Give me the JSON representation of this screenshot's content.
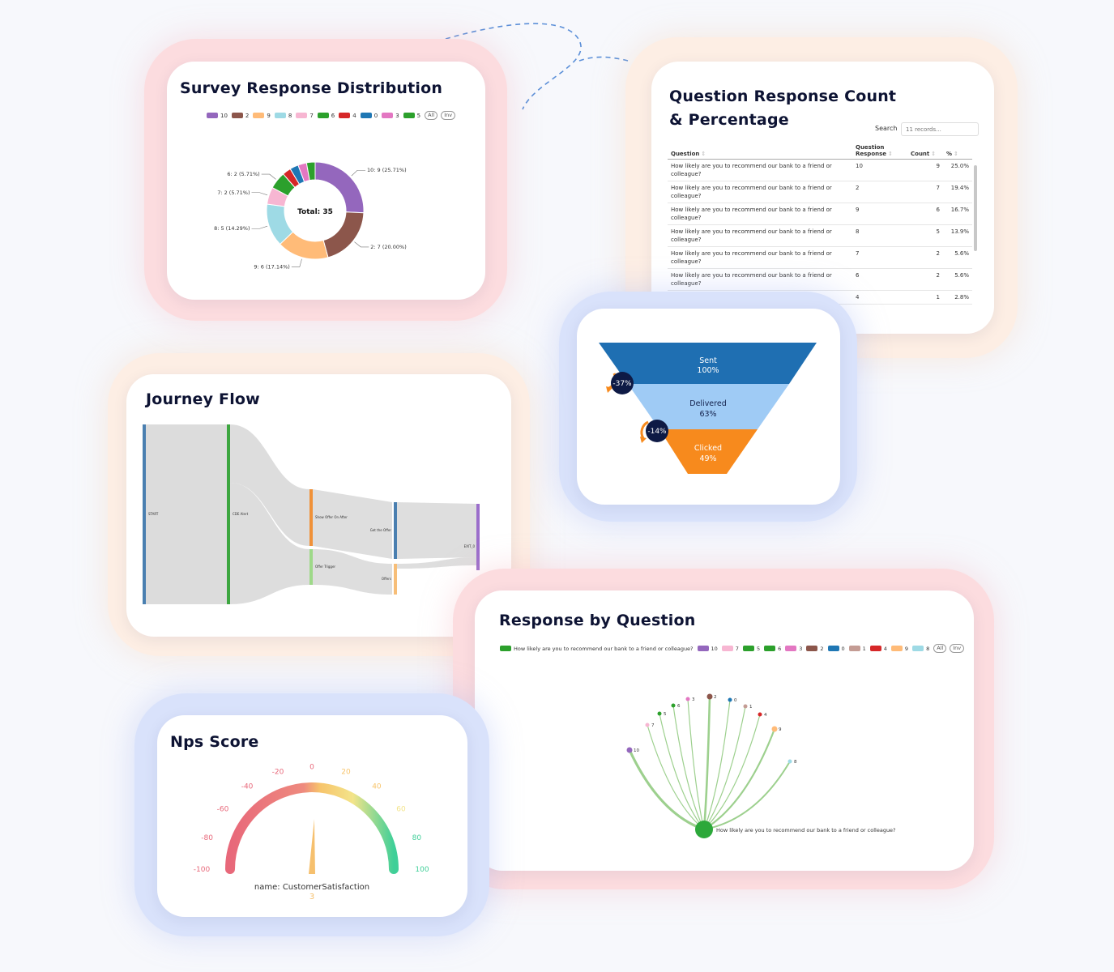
{
  "survey_distribution": {
    "title": "Survey Response Distribution",
    "legend": [
      {
        "label": "10",
        "color": "#9467bd"
      },
      {
        "label": "2",
        "color": "#8c564b"
      },
      {
        "label": "9",
        "color": "#ffbb78"
      },
      {
        "label": "8",
        "color": "#9edae5"
      },
      {
        "label": "7",
        "color": "#f7b6d2"
      },
      {
        "label": "6",
        "color": "#2ca02c"
      },
      {
        "label": "4",
        "color": "#d62728"
      },
      {
        "label": "0",
        "color": "#1f77b4"
      },
      {
        "label": "3",
        "color": "#e377c2"
      },
      {
        "label": "5",
        "color": "#2ca02c"
      }
    ],
    "btn_all": "All",
    "btn_inv": "Inv",
    "center_label": "Total: 35"
  },
  "question_table": {
    "title_line1": "Question Response Count",
    "title_line2": "& Percentage",
    "search_label": "Search",
    "search_placeholder": "11 records...",
    "headers": {
      "question": "Question",
      "response_line1": "Question",
      "response_line2": "Response",
      "count": "Count",
      "percent": "%"
    },
    "rows": [
      {
        "question_line1": "How likely are you to recommend our bank to a friend or",
        "question_line2": "colleague?",
        "response": "10",
        "count": "9",
        "percent": "25.0%"
      },
      {
        "question_line1": "How likely are you to recommend our bank to a friend or",
        "question_line2": "colleague?",
        "response": "2",
        "count": "7",
        "percent": "19.4%"
      },
      {
        "question_line1": "How likely are you to recommend our bank to a friend or",
        "question_line2": "colleague?",
        "response": "9",
        "count": "6",
        "percent": "16.7%"
      },
      {
        "question_line1": "How likely are you to recommend our bank to a friend or",
        "question_line2": "colleague?",
        "response": "8",
        "count": "5",
        "percent": "13.9%"
      },
      {
        "question_line1": "How likely are you to recommend our bank to a friend or",
        "question_line2": "colleague?",
        "response": "7",
        "count": "2",
        "percent": "5.6%"
      },
      {
        "question_line1": "How likely are you to recommend our bank to a friend or",
        "question_line2": "colleague?",
        "response": "6",
        "count": "2",
        "percent": "5.6%"
      },
      {
        "question_line1": "",
        "question_line2": "",
        "response": "4",
        "count": "1",
        "percent": "2.8%"
      }
    ]
  },
  "funnel": {
    "stages": [
      {
        "name": "Sent",
        "value": "100%",
        "color": "#1f6fb2"
      },
      {
        "name": "Delivered",
        "value": "63%",
        "color": "#9fcbf5"
      },
      {
        "name": "Clicked",
        "value": "49%",
        "color": "#f78a1d"
      }
    ],
    "drops": [
      "-37%",
      "-14%"
    ]
  },
  "journey": {
    "title": "Journey Flow",
    "nodes": [
      "START",
      "CDE Alert",
      "Show Offer On After",
      "Offer Trigger",
      "Get the Offer",
      "Offers",
      "EXIT_0"
    ]
  },
  "response_by_question": {
    "title": "Response by Question",
    "legend_question": "How likely are you to recommend our bank to a friend or colleague?",
    "legend": [
      {
        "label": "10",
        "color": "#9467bd"
      },
      {
        "label": "7",
        "color": "#f7b6d2"
      },
      {
        "label": "5",
        "color": "#2ca02c"
      },
      {
        "label": "6",
        "color": "#2ca02c"
      },
      {
        "label": "3",
        "color": "#e377c2"
      },
      {
        "label": "2",
        "color": "#8c564b"
      },
      {
        "label": "0",
        "color": "#1f77b4"
      },
      {
        "label": "1",
        "color": "#c49c94"
      },
      {
        "label": "4",
        "color": "#d62728"
      },
      {
        "label": "9",
        "color": "#ffbb78"
      },
      {
        "label": "8",
        "color": "#9edae5"
      }
    ],
    "btn_all": "All",
    "btn_inv": "Inv",
    "root_label": "How likely are you to recommend our bank to a friend or colleague?"
  },
  "nps": {
    "title": "Nps Score",
    "ticks": [
      "-100",
      "-80",
      "-60",
      "-40",
      "-20",
      "0",
      "20",
      "40",
      "60",
      "80",
      "100"
    ],
    "name_label": "name: CustomerSatisfaction",
    "value_label": "3"
  },
  "chart_data": [
    {
      "type": "pie",
      "title": "Survey Response Distribution",
      "total": 35,
      "slices": [
        {
          "label": "10",
          "value": 9,
          "percent_label": "10: 9 (25.71%)",
          "color": "#9467bd"
        },
        {
          "label": "2",
          "value": 7,
          "percent_label": "2: 7 (20.00%)",
          "color": "#8c564b"
        },
        {
          "label": "9",
          "value": 6,
          "percent_label": "9: 6 (17.14%)",
          "color": "#ffbb78"
        },
        {
          "label": "8",
          "value": 5,
          "percent_label": "8: 5 (14.29%)",
          "color": "#9edae5"
        },
        {
          "label": "7",
          "value": 2,
          "percent_label": "7: 2 (5.71%)",
          "color": "#f7b6d2"
        },
        {
          "label": "6",
          "value": 2,
          "percent_label": "6: 2 (5.71%)",
          "color": "#2ca02c"
        },
        {
          "label": "4",
          "value": 1,
          "percent_label": "",
          "color": "#d62728"
        },
        {
          "label": "0",
          "value": 1,
          "percent_label": "",
          "color": "#1f77b4"
        },
        {
          "label": "3",
          "value": 1,
          "percent_label": "",
          "color": "#e377c2"
        },
        {
          "label": "5",
          "value": 1,
          "percent_label": "",
          "color": "#2ca02c"
        }
      ]
    },
    {
      "type": "table",
      "title": "Question Response Count & Percentage",
      "columns": [
        "Question",
        "Question Response",
        "Count",
        "%"
      ],
      "rows": [
        [
          "10",
          9,
          25.0
        ],
        [
          "2",
          7,
          19.4
        ],
        [
          "9",
          6,
          16.7
        ],
        [
          "8",
          5,
          13.9
        ],
        [
          "7",
          2,
          5.6
        ],
        [
          "6",
          2,
          5.6
        ],
        [
          "4",
          1,
          2.8
        ]
      ]
    },
    {
      "type": "bar",
      "categories": [
        "Sent",
        "Delivered",
        "Clicked"
      ],
      "values": [
        100,
        63,
        49
      ]
    },
    {
      "type": "gauge",
      "title": "Nps Score",
      "min": -100,
      "max": 100,
      "value": 3
    }
  ]
}
